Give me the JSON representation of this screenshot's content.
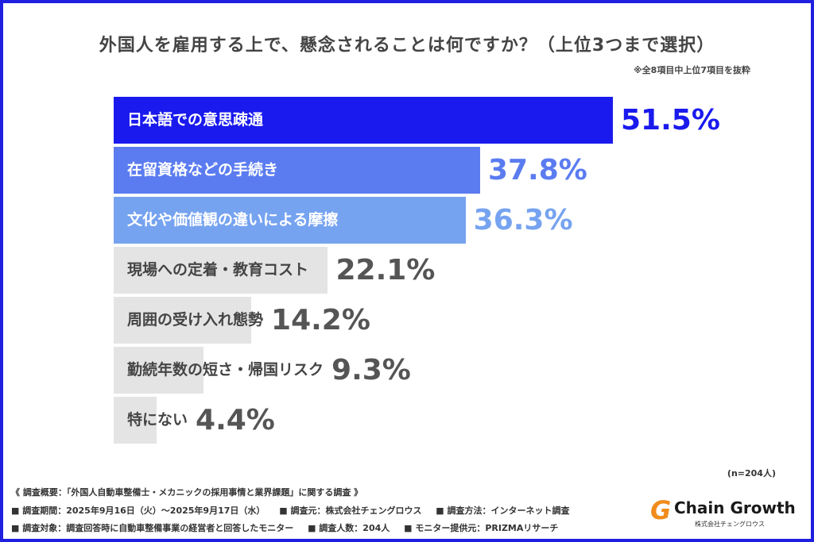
{
  "chart_data": {
    "type": "bar",
    "orientation": "horizontal",
    "title": "外国人を雇用する上で、懸念されることは何ですか？（上位3つまで選択）",
    "subtitle": "※全8項目中上位7項目を抜粋",
    "categories": [
      "日本語での意思疎通",
      "在留資格などの手続き",
      "文化や価値観の違いによる摩擦",
      "現場への定着・教育コスト",
      "周囲の受け入れ態勢",
      "勤続年数の短さ・帰国リスク",
      "特にない"
    ],
    "values": [
      51.5,
      37.8,
      36.3,
      22.1,
      14.2,
      9.3,
      4.4
    ],
    "value_labels": [
      "51.5%",
      "37.8%",
      "36.3%",
      "22.1%",
      "14.2%",
      "9.3%",
      "4.4%"
    ],
    "bar_colors": [
      "#1a1aee",
      "#5b7cf0",
      "#76a3f0",
      "#e4e4e4",
      "#e4e4e4",
      "#e4e4e4",
      "#e4e4e4"
    ],
    "label_colors": [
      "#ffffff",
      "#ffffff",
      "#ffffff",
      "#444444",
      "#444444",
      "#444444",
      "#444444"
    ],
    "value_colors": [
      "#1a1aee",
      "#5b7cf0",
      "#76a3f0",
      "#555555",
      "#555555",
      "#555555",
      "#555555"
    ],
    "xlim": [
      0,
      51.5
    ],
    "grid": false
  },
  "sample_size": "(n=204人)",
  "footer": {
    "line1": "《 調査概要：「外国人自動車整備士・メカニックの採用事情と業界課題」に関する調査 》",
    "line2": [
      "■ 調査期間：2025年9月16日（火）〜2025年9月17日（水）",
      "■ 調査元：株式会社チェングロウス",
      "■ 調査方法：インターネット調査"
    ],
    "line3": [
      "■ 調査対象：調査回答時に自動車整備事業の経営者と回答したモニター",
      "■ 調査人数：204人",
      "■ モニター提供元：PRIZMAリサーチ"
    ]
  },
  "logo": {
    "name": "Chain Growth",
    "sub": "株式会社チェングロウス"
  },
  "colors": {
    "border": "#1f1fe0",
    "accent_logo": "#f08c1c"
  }
}
